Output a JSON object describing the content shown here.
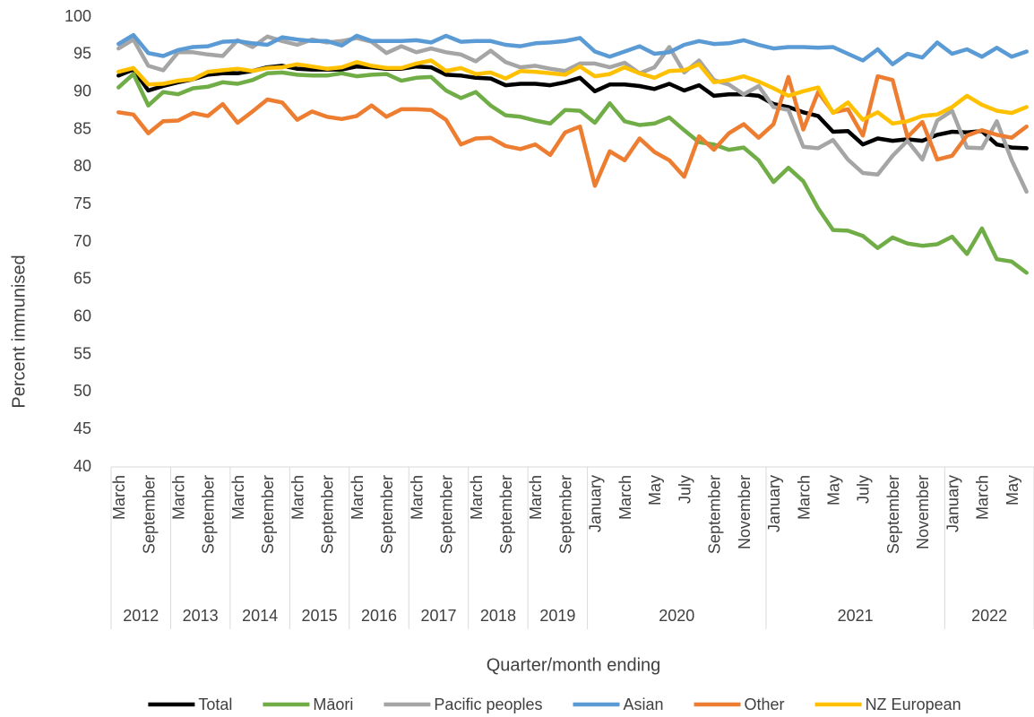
{
  "chart_data": {
    "type": "line",
    "y_label": "Percent immunised",
    "x_label": "Quarter/month ending",
    "categories": [
      "March",
      null,
      "September",
      null,
      "March",
      null,
      "September",
      null,
      "March",
      null,
      "September",
      null,
      "March",
      null,
      "September",
      null,
      "March",
      null,
      "September",
      null,
      "March",
      null,
      "September",
      null,
      "March",
      null,
      "September",
      null,
      "March",
      null,
      "September",
      null,
      "January",
      null,
      "March",
      null,
      "May",
      null,
      "July",
      null,
      "September",
      null,
      "November",
      null,
      "January",
      null,
      "March",
      null,
      "May",
      null,
      "July",
      null,
      "September",
      null,
      "November",
      null,
      "January",
      null,
      "March",
      null,
      "May",
      null
    ],
    "groups": [
      {
        "name": "2012",
        "size": 4
      },
      {
        "name": "2013",
        "size": 4
      },
      {
        "name": "2014",
        "size": 4
      },
      {
        "name": "2015",
        "size": 4
      },
      {
        "name": "2016",
        "size": 4
      },
      {
        "name": "2017",
        "size": 4
      },
      {
        "name": "2018",
        "size": 4
      },
      {
        "name": "2019",
        "size": 4
      },
      {
        "name": "2020",
        "size": 12
      },
      {
        "name": "2021",
        "size": 12
      },
      {
        "name": "2022",
        "size": 6
      }
    ],
    "series": [
      {
        "name": "Total",
        "color": "#000000",
        "values": [
          92.2,
          93.0,
          90.2,
          90.8,
          91.3,
          91.7,
          92.3,
          92.5,
          92.5,
          92.8,
          93.3,
          93.5,
          93.1,
          93.0,
          93.0,
          93.0,
          93.4,
          93.3,
          93.1,
          93.1,
          93.4,
          93.3,
          92.3,
          92.2,
          91.9,
          91.8,
          90.9,
          91.1,
          91.1,
          90.9,
          91.3,
          91.9,
          90.1,
          91.0,
          91.0,
          90.8,
          90.4,
          91.1,
          90.2,
          90.9,
          89.5,
          89.7,
          89.7,
          89.5,
          88.4,
          88.0,
          87.3,
          86.8,
          84.7,
          84.8,
          83.0,
          83.8,
          83.5,
          83.7,
          83.5,
          84.3,
          84.7,
          84.6,
          84.8,
          83.0,
          82.6,
          82.5
        ]
      },
      {
        "name": "Māori",
        "color": "#70ad47",
        "values": [
          90.6,
          92.4,
          88.2,
          90.0,
          89.7,
          90.5,
          90.7,
          91.3,
          91.1,
          91.6,
          92.5,
          92.6,
          92.3,
          92.2,
          92.2,
          92.5,
          92.1,
          92.3,
          92.4,
          91.5,
          91.9,
          92.0,
          90.2,
          89.2,
          90.0,
          88.2,
          86.9,
          86.7,
          86.2,
          85.8,
          87.6,
          87.5,
          85.9,
          88.5,
          86.1,
          85.6,
          85.8,
          86.6,
          84.9,
          83.3,
          83.0,
          82.3,
          82.6,
          80.9,
          78.0,
          79.9,
          78.1,
          74.5,
          71.6,
          71.5,
          70.8,
          69.2,
          70.6,
          69.8,
          69.5,
          69.7,
          70.7,
          68.4,
          71.8,
          67.7,
          67.4,
          65.9
        ]
      },
      {
        "name": "Pacific peoples",
        "color": "#a5a5a5",
        "values": [
          95.8,
          97.0,
          93.5,
          92.9,
          95.3,
          95.3,
          95.0,
          94.8,
          96.9,
          96.0,
          97.4,
          96.8,
          96.3,
          97.0,
          96.6,
          96.8,
          97.2,
          96.7,
          95.2,
          96.1,
          95.3,
          95.8,
          95.3,
          95.0,
          94.1,
          95.5,
          94.0,
          93.3,
          93.5,
          93.1,
          92.8,
          93.8,
          93.8,
          93.3,
          93.9,
          92.5,
          93.3,
          96.0,
          92.6,
          94.2,
          91.6,
          91.0,
          89.7,
          90.8,
          88.0,
          87.6,
          82.7,
          82.5,
          83.6,
          81.0,
          79.2,
          79.0,
          81.5,
          83.5,
          81.0,
          86.2,
          87.5,
          82.6,
          82.5,
          86.1,
          80.9,
          76.7
        ]
      },
      {
        "name": "Asian",
        "color": "#5b9bd5",
        "values": [
          96.4,
          97.6,
          95.2,
          94.8,
          95.6,
          96.0,
          96.1,
          96.7,
          96.8,
          96.5,
          96.3,
          97.3,
          97.0,
          96.8,
          96.8,
          96.2,
          97.5,
          96.8,
          96.8,
          96.8,
          96.9,
          96.6,
          97.5,
          96.7,
          96.8,
          96.8,
          96.3,
          96.1,
          96.5,
          96.6,
          96.8,
          97.2,
          95.4,
          94.7,
          95.4,
          96.1,
          95.1,
          95.3,
          96.3,
          96.8,
          96.4,
          96.5,
          96.9,
          96.3,
          95.8,
          96.0,
          96.0,
          95.9,
          96.0,
          95.1,
          94.2,
          95.7,
          93.7,
          95.1,
          94.6,
          96.6,
          95.1,
          95.7,
          94.7,
          95.9,
          94.7,
          95.4
        ]
      },
      {
        "name": "Other",
        "color": "#ed7d31",
        "values": [
          87.3,
          87.0,
          84.5,
          86.1,
          86.2,
          87.2,
          86.8,
          88.4,
          85.9,
          87.4,
          89.0,
          88.6,
          86.3,
          87.4,
          86.7,
          86.4,
          86.8,
          88.2,
          86.7,
          87.7,
          87.7,
          87.6,
          86.3,
          83.0,
          83.8,
          83.9,
          82.8,
          82.4,
          83.0,
          81.6,
          84.6,
          85.4,
          77.5,
          82.1,
          80.9,
          83.8,
          82.0,
          80.9,
          78.7,
          84.1,
          82.3,
          84.5,
          85.7,
          83.9,
          85.7,
          92.0,
          85.0,
          90.0,
          87.3,
          87.7,
          84.2,
          92.1,
          91.6,
          84.0,
          86.0,
          81.0,
          81.5,
          84.2,
          84.9,
          84.3,
          83.9,
          85.4
        ]
      },
      {
        "name": "NZ European",
        "color": "#ffc000",
        "values": [
          92.7,
          93.2,
          91.0,
          91.1,
          91.5,
          91.7,
          92.7,
          92.9,
          93.1,
          92.8,
          93.2,
          93.3,
          93.7,
          93.4,
          93.1,
          93.3,
          94.0,
          93.5,
          93.2,
          93.2,
          93.8,
          94.2,
          92.8,
          93.2,
          92.4,
          92.6,
          91.8,
          92.8,
          92.7,
          92.5,
          92.3,
          93.4,
          92.1,
          92.4,
          93.3,
          92.5,
          91.9,
          92.8,
          92.9,
          93.7,
          91.3,
          91.6,
          92.1,
          91.4,
          90.5,
          89.5,
          90.1,
          90.6,
          87.2,
          88.6,
          86.3,
          87.3,
          85.8,
          86.1,
          86.8,
          87.0,
          88.0,
          89.5,
          88.3,
          87.5,
          87.2,
          88.0
        ]
      }
    ],
    "ylim": [
      40,
      100
    ],
    "yticks": [
      40,
      45,
      50,
      55,
      60,
      65,
      70,
      75,
      80,
      85,
      90,
      95,
      100
    ],
    "grid": false,
    "legend": "bottom"
  }
}
